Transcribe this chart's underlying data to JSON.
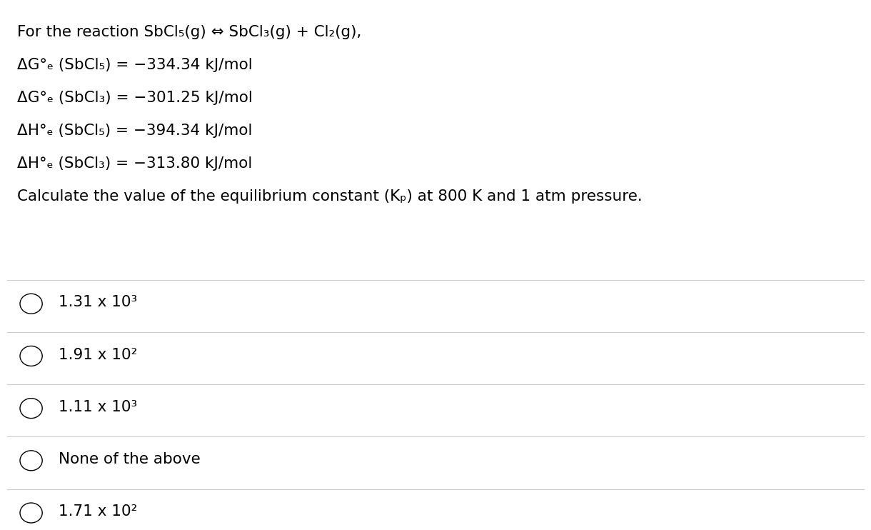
{
  "background_color": "#ffffff",
  "text_color": "#000000",
  "line_color": "#cccccc",
  "question_lines": [
    "For the reaction SbCl₅(g) ⇔ SbCl₃(g) + Cl₂(g),",
    "ΔG°ₑ (SbCl₅) = −334.34 kJ/mol",
    "ΔG°ₑ (SbCl₃) = −301.25 kJ/mol",
    "ΔH°ₑ (SbCl₅) = −394.34 kJ/mol",
    "ΔH°ₑ (SbCl₃) = −313.80 kJ/mol",
    "Calculate the value of the equilibrium constant (Kₚ) at 800 K and 1 atm pressure."
  ],
  "choices": [
    "1.31 x 10³",
    "1.91 x 10²",
    "1.11 x 10³",
    "None of the above",
    "1.71 x 10²"
  ],
  "font_size_question": 15.5,
  "font_size_choices": 15.5,
  "font_family": "DejaVu Sans"
}
